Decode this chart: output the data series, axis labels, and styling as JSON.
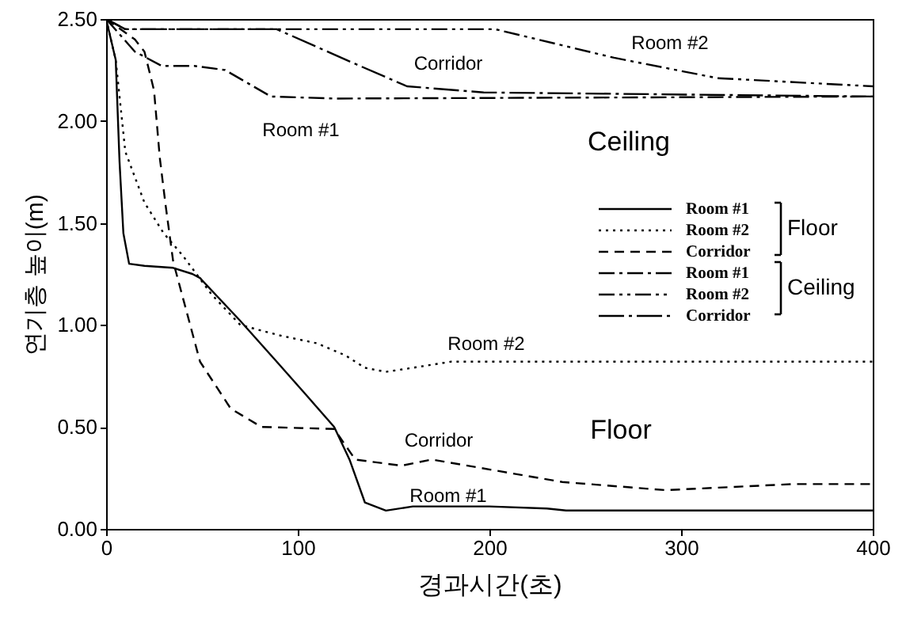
{
  "chart_data": {
    "type": "line",
    "xlabel": "경과시간(초)",
    "ylabel": "연기층 높이(m)",
    "xlim": [
      0,
      400
    ],
    "xticks": [
      0,
      100,
      200,
      300,
      400
    ],
    "ylim": [
      0,
      2.5
    ],
    "yticks": [
      {
        "value": 0,
        "label": "0.00"
      },
      {
        "value": 0.5,
        "label": "0.50"
      },
      {
        "value": 1,
        "label": "1.00"
      },
      {
        "value": 1.5,
        "label": "1.50"
      },
      {
        "value": 2,
        "label": "2.00"
      },
      {
        "value": 2.5,
        "label": "2.50"
      }
    ],
    "grid": false,
    "legend": "right",
    "marker": "none",
    "series": [
      {
        "name": "Room #1",
        "color": "#000000",
        "line_style": "solid",
        "x": [
          0,
          5,
          7,
          9,
          12,
          20,
          35,
          45,
          49,
          70,
          89,
          105,
          119,
          127,
          135,
          146,
          160,
          200,
          230,
          240,
          400
        ],
        "values": [
          2.5,
          2.3,
          1.8,
          1.45,
          1.3,
          1.29,
          1.28,
          1.25,
          1.23,
          1.02,
          0.82,
          0.65,
          0.5,
          0.34,
          0.13,
          0.09,
          0.11,
          0.11,
          0.1,
          0.09,
          0.09
        ]
      },
      {
        "name": "Room #2",
        "color": "#000000",
        "line_style": "dotted",
        "x": [
          0,
          5,
          10,
          20,
          30,
          40,
          55,
          70,
          90,
          110,
          125,
          135,
          146,
          160,
          180,
          400
        ],
        "values": [
          2.5,
          2.3,
          1.85,
          1.6,
          1.45,
          1.34,
          1.15,
          1.0,
          0.95,
          0.91,
          0.85,
          0.79,
          0.77,
          0.79,
          0.82,
          0.82
        ]
      },
      {
        "name": "Corridor",
        "color": "#000000",
        "line_style": "dashed",
        "x": [
          0,
          15,
          20,
          25,
          28,
          31,
          35,
          49,
          65,
          81,
          119,
          130,
          154,
          170,
          238,
          292,
          359,
          400
        ],
        "values": [
          2.5,
          2.4,
          2.34,
          2.15,
          1.82,
          1.59,
          1.31,
          0.82,
          0.59,
          0.5,
          0.49,
          0.34,
          0.31,
          0.34,
          0.23,
          0.19,
          0.22,
          0.22
        ]
      },
      {
        "name": "Room #1",
        "color": "#000000",
        "line_style": "dashdot",
        "x": [
          0,
          15,
          29,
          46,
          62,
          86,
          119,
          400
        ],
        "values": [
          2.5,
          2.34,
          2.27,
          2.27,
          2.25,
          2.12,
          2.11,
          2.12
        ]
      },
      {
        "name": "Room #2",
        "color": "#000000",
        "line_style": "dashdotdot",
        "x": [
          0,
          10,
          203,
          265,
          319,
          400
        ],
        "values": [
          2.5,
          2.45,
          2.45,
          2.31,
          2.21,
          2.17
        ]
      },
      {
        "name": "Corridor",
        "color": "#000000",
        "line_style": "longdashdot",
        "x": [
          0,
          10,
          89,
          130,
          157,
          197,
          400
        ],
        "values": [
          2.5,
          2.45,
          2.45,
          2.28,
          2.17,
          2.14,
          2.12
        ]
      }
    ],
    "annotations": [
      "Room #2",
      "Corridor",
      "Room #1",
      "Ceiling",
      "Room #2",
      "Floor",
      "Corridor",
      "Room #1",
      "Floor",
      "Ceiling"
    ]
  }
}
